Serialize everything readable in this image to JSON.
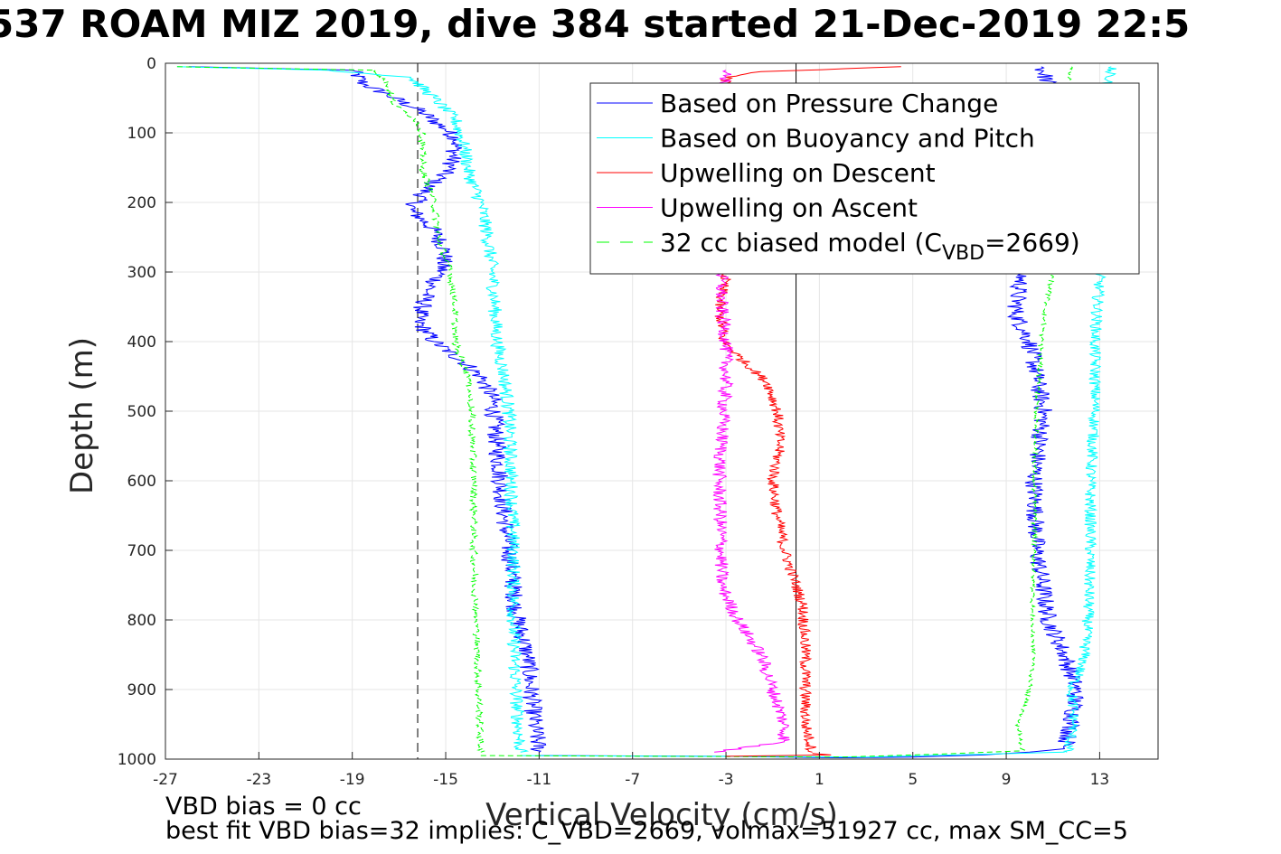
{
  "chart_data": {
    "type": "line",
    "title": "537 ROAM MIZ 2019, dive 384 started 21-Dec-2019 22:5",
    "xlabel": "Vertical Velocity (cm/s)",
    "ylabel": "Depth (m)",
    "xlim": [
      -27,
      15.5
    ],
    "ylim": [
      0,
      1000
    ],
    "y_reversed": true,
    "grid": true,
    "legend_position": "top-right",
    "x_ticks": [
      "-27",
      "-23",
      "-19",
      "-15",
      "-11",
      "-7",
      "-3",
      "1",
      "5",
      "9",
      "13"
    ],
    "y_ticks": [
      "0",
      "100",
      "200",
      "300",
      "400",
      "500",
      "600",
      "700",
      "800",
      "900",
      "1000"
    ],
    "reference_lines": [
      {
        "style": "dashed",
        "x": -16.2
      },
      {
        "style": "solid",
        "x": 0
      }
    ],
    "series": [
      {
        "name": "Based on Pressure Change",
        "color": "#0000ff",
        "style": "solid",
        "jitter": 0.4,
        "points": [
          [
            -26,
            5
          ],
          [
            -19,
            10
          ],
          [
            -18.5,
            30
          ],
          [
            -17.5,
            45
          ],
          [
            -16,
            70
          ],
          [
            -15,
            95
          ],
          [
            -14.5,
            110
          ],
          [
            -14.8,
            150
          ],
          [
            -15.8,
            180
          ],
          [
            -16.5,
            210
          ],
          [
            -15.5,
            240
          ],
          [
            -15,
            270
          ],
          [
            -15.2,
            300
          ],
          [
            -15.8,
            330
          ],
          [
            -16.2,
            370
          ],
          [
            -15.5,
            400
          ],
          [
            -14.2,
            430
          ],
          [
            -13.5,
            450
          ],
          [
            -13,
            480
          ],
          [
            -12.8,
            550
          ],
          [
            -12.5,
            650
          ],
          [
            -12.2,
            720
          ],
          [
            -12,
            790
          ],
          [
            -11.5,
            850
          ],
          [
            -11.2,
            950
          ],
          [
            -11,
            990
          ]
        ]
      },
      {
        "name": "",
        "color": "#0000ff",
        "style": "solid",
        "jitter": 0.4,
        "points": [
          [
            10.5,
            5
          ],
          [
            10.8,
            30
          ],
          [
            10.5,
            60
          ],
          [
            10.8,
            100
          ],
          [
            10.2,
            150
          ],
          [
            9.8,
            200
          ],
          [
            10,
            260
          ],
          [
            9.7,
            300
          ],
          [
            9.5,
            330
          ],
          [
            9.4,
            360
          ],
          [
            10,
            400
          ],
          [
            10.3,
            450
          ],
          [
            10.6,
            500
          ],
          [
            10.2,
            600
          ],
          [
            10.3,
            700
          ],
          [
            10.8,
            800
          ],
          [
            11.5,
            850
          ],
          [
            12,
            900
          ],
          [
            11.8,
            950
          ],
          [
            11.5,
            985
          ]
        ]
      },
      {
        "name": "Based on Buoyancy and Pitch",
        "color": "#00ffff",
        "style": "solid",
        "jitter": 0.3,
        "points": [
          [
            -26.5,
            5
          ],
          [
            -20,
            10
          ],
          [
            -16.5,
            20
          ],
          [
            -15.5,
            50
          ],
          [
            -14.6,
            80
          ],
          [
            -14.2,
            120
          ],
          [
            -14,
            160
          ],
          [
            -13.5,
            200
          ],
          [
            -13.2,
            250
          ],
          [
            -13,
            300
          ],
          [
            -12.9,
            350
          ],
          [
            -12.8,
            400
          ],
          [
            -12.5,
            450
          ],
          [
            -12.3,
            500
          ],
          [
            -12.2,
            600
          ],
          [
            -12.1,
            700
          ],
          [
            -12.1,
            800
          ],
          [
            -12,
            900
          ],
          [
            -11.8,
            990
          ]
        ]
      },
      {
        "name": "",
        "color": "#00ffff",
        "style": "solid",
        "jitter": 0.25,
        "points": [
          [
            13.5,
            5
          ],
          [
            13.3,
            30
          ],
          [
            13.2,
            100
          ],
          [
            13,
            200
          ],
          [
            13,
            300
          ],
          [
            12.8,
            400
          ],
          [
            12.8,
            500
          ],
          [
            12.6,
            600
          ],
          [
            12.6,
            700
          ],
          [
            12.5,
            800
          ],
          [
            12.3,
            860
          ],
          [
            11.8,
            900
          ],
          [
            11.9,
            950
          ],
          [
            11.6,
            990
          ]
        ]
      },
      {
        "name": "Upwelling on Descent",
        "color": "#ff0000",
        "style": "solid",
        "jitter": 0.25,
        "points": [
          [
            4.5,
            5
          ],
          [
            -1.5,
            12
          ],
          [
            -3,
            20
          ],
          [
            -3,
            60
          ],
          [
            -3,
            150
          ],
          [
            -3,
            250
          ],
          [
            -3,
            300
          ],
          [
            -3.3,
            350
          ],
          [
            -3.1,
            400
          ],
          [
            -2.5,
            420
          ],
          [
            -1.2,
            460
          ],
          [
            -0.8,
            500
          ],
          [
            -0.7,
            550
          ],
          [
            -1,
            600
          ],
          [
            -0.8,
            650
          ],
          [
            -0.5,
            700
          ],
          [
            0,
            750
          ],
          [
            0.3,
            780
          ],
          [
            0.4,
            850
          ],
          [
            0.4,
            950
          ],
          [
            0.7,
            990
          ]
        ]
      },
      {
        "name": "Upwelling on Ascent",
        "color": "#ff00ff",
        "style": "solid",
        "jitter": 0.3,
        "points": [
          [
            -3,
            10
          ],
          [
            -3,
            60
          ],
          [
            -3,
            150
          ],
          [
            -3,
            250
          ],
          [
            -3.2,
            300
          ],
          [
            -3.2,
            350
          ],
          [
            -3,
            400
          ],
          [
            -3,
            450
          ],
          [
            -3.1,
            500
          ],
          [
            -3.2,
            550
          ],
          [
            -3.3,
            600
          ],
          [
            -3.2,
            700
          ],
          [
            -3.2,
            750
          ],
          [
            -2.5,
            800
          ],
          [
            -1.5,
            850
          ],
          [
            -1,
            900
          ],
          [
            -0.5,
            950
          ],
          [
            -0.5,
            975
          ],
          [
            -3.5,
            990
          ]
        ]
      },
      {
        "name": "32 cc biased model (C_VBD=2669)",
        "color": "#00ff00",
        "style": "dashed",
        "jitter": 0.15,
        "points": [
          [
            -26.5,
            5
          ],
          [
            -18,
            10
          ],
          [
            -17.5,
            30
          ],
          [
            -17.2,
            60
          ],
          [
            -16.3,
            80
          ],
          [
            -16,
            100
          ],
          [
            -16,
            150
          ],
          [
            -15.5,
            200
          ],
          [
            -15.3,
            250
          ],
          [
            -14.8,
            300
          ],
          [
            -14.6,
            350
          ],
          [
            -14.6,
            400
          ],
          [
            -14.3,
            430
          ],
          [
            -14,
            450
          ],
          [
            -13.9,
            500
          ],
          [
            -13.8,
            600
          ],
          [
            -13.8,
            700
          ],
          [
            -13.7,
            800
          ],
          [
            -13.6,
            900
          ],
          [
            -13.5,
            990
          ]
        ]
      },
      {
        "name": "",
        "color": "#00ff00",
        "style": "dashed",
        "jitter": 0.1,
        "points": [
          [
            11.8,
            5
          ],
          [
            11.6,
            50
          ],
          [
            11.5,
            100
          ],
          [
            11.2,
            150
          ],
          [
            11.1,
            200
          ],
          [
            11,
            250
          ],
          [
            11,
            300
          ],
          [
            10.7,
            350
          ],
          [
            10.5,
            400
          ],
          [
            10.3,
            500
          ],
          [
            10.2,
            600
          ],
          [
            10.2,
            700
          ],
          [
            10.1,
            800
          ],
          [
            10.2,
            850
          ],
          [
            10,
            900
          ],
          [
            9.5,
            950
          ],
          [
            9.7,
            990
          ]
        ]
      },
      {
        "name": "",
        "color": "#0000ff",
        "style": "solid",
        "jitter": 0,
        "points": [
          [
            -11,
            995
          ],
          [
            -3,
            996
          ],
          [
            2,
            998
          ],
          [
            5,
            997
          ],
          [
            8,
            994
          ],
          [
            10,
            990
          ],
          [
            11.5,
            985
          ]
        ]
      },
      {
        "name": "",
        "color": "#00ffff",
        "style": "solid",
        "jitter": 0,
        "points": [
          [
            -11.8,
            995
          ],
          [
            -4,
            996
          ],
          [
            3,
            997
          ],
          [
            8,
            993
          ],
          [
            11.5,
            990
          ]
        ]
      },
      {
        "name": "",
        "color": "#00ff00",
        "style": "dashed",
        "jitter": 0,
        "points": [
          [
            -13.5,
            995
          ],
          [
            -6,
            996
          ],
          [
            2,
            997
          ],
          [
            6,
            993
          ],
          [
            9.7,
            988
          ]
        ]
      },
      {
        "name": "",
        "color": "#ff0000",
        "style": "solid",
        "jitter": 0,
        "points": [
          [
            0.7,
            992
          ],
          [
            1.5,
            994
          ],
          [
            -3,
            996
          ]
        ]
      }
    ],
    "legend": {
      "entries": [
        {
          "label": "Based on Pressure Change",
          "color": "#0000ff",
          "dashed": false
        },
        {
          "label": "Based on Buoyancy and Pitch",
          "color": "#00ffff",
          "dashed": false
        },
        {
          "label": "Upwelling on Descent",
          "color": "#ff0000",
          "dashed": false
        },
        {
          "label": "Upwelling on Ascent",
          "color": "#ff00ff",
          "dashed": false
        },
        {
          "label": "32 cc biased model (C",
          "sub": "VBD",
          "suffix": "=2669)",
          "color": "#00ff00",
          "dashed": true
        }
      ]
    }
  },
  "footer": {
    "line1": "VBD bias = 0 cc",
    "line2": "best fit VBD bias=32 implies: C_VBD=2669, volmax=51927 cc, max SM_CC=5"
  }
}
